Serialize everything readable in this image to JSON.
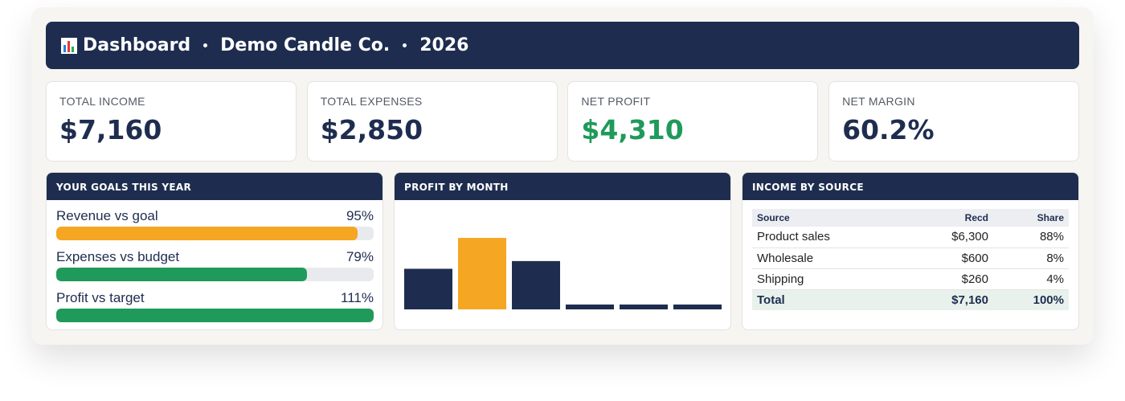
{
  "header": {
    "title": "Dashboard",
    "company": "Demo Candle Co.",
    "year": "2026"
  },
  "kpis": [
    {
      "label": "TOTAL INCOME",
      "value": "$7,160",
      "color": "#1e2d4f"
    },
    {
      "label": "TOTAL EXPENSES",
      "value": "$2,850",
      "color": "#1e2d4f"
    },
    {
      "label": "NET PROFIT",
      "value": "$4,310",
      "color": "#1f9a5a"
    },
    {
      "label": "NET MARGIN",
      "value": "60.2%",
      "color": "#1e2d4f"
    }
  ],
  "goals": {
    "title": "YOUR GOALS THIS YEAR",
    "items": [
      {
        "label": "Revenue vs goal",
        "value": 95,
        "value_label": "95%",
        "color": "#f5a623"
      },
      {
        "label": "Expenses vs budget",
        "value": 79,
        "value_label": "79%",
        "color": "#1f9a5a"
      },
      {
        "label": "Profit vs target",
        "value": 111,
        "value_label": "111%",
        "color": "#1f9a5a"
      }
    ]
  },
  "chart_data": {
    "type": "bar",
    "title": "PROFIT BY MONTH",
    "categories": [
      null,
      null,
      null,
      null,
      null,
      null
    ],
    "values": [
      1000,
      1760,
      1190,
      120,
      120,
      120
    ],
    "colors": [
      "#1e2d4f",
      "#f5a623",
      "#1e2d4f",
      "#1e2d4f",
      "#1e2d4f",
      "#1e2d4f"
    ],
    "ylim": [
      0,
      1880
    ]
  },
  "income": {
    "title": "INCOME BY SOURCE",
    "columns": [
      "Source",
      "Recd",
      "Share"
    ],
    "rows": [
      [
        "Product sales",
        "$6,300",
        "88%"
      ],
      [
        "Wholesale",
        "$600",
        "8%"
      ],
      [
        "Shipping",
        "$260",
        "4%"
      ]
    ],
    "total": [
      "Total",
      "$7,160",
      "100%"
    ]
  }
}
